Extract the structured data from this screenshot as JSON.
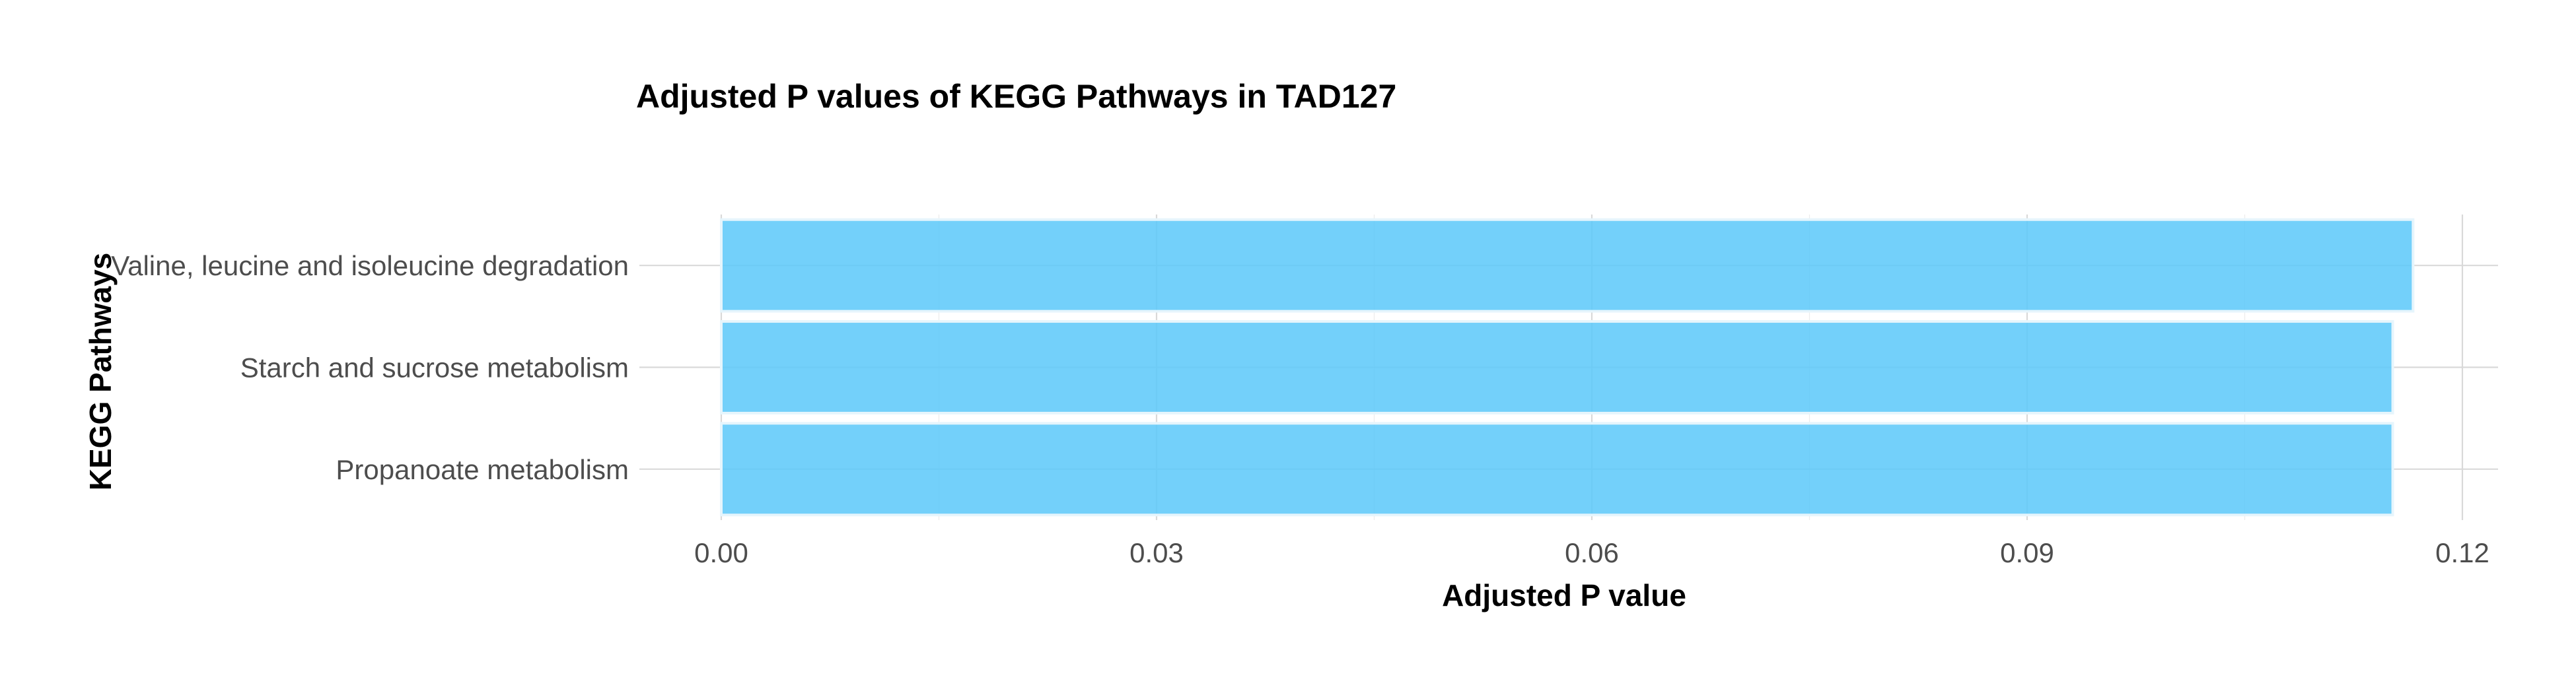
{
  "chart_data": {
    "type": "bar",
    "orientation": "horizontal",
    "title": "Adjusted P values of KEGG Pathways in TAD127",
    "xlabel": "Adjusted P value",
    "ylabel": "KEGG Pathways",
    "categories": [
      "Valine, leucine and isoleucine degradation",
      "Starch and sucrose metabolism",
      "Propanoate metabolism"
    ],
    "values": [
      0.1166,
      0.1152,
      0.1152
    ],
    "xlim": [
      0,
      0.12
    ],
    "xticks": [
      0.0,
      0.03,
      0.06,
      0.09,
      0.12
    ],
    "xtick_labels": [
      "0.00",
      "0.03",
      "0.06",
      "0.09",
      "0.12"
    ],
    "grid": true,
    "legend": "none",
    "bar_color": "#5bc8f9"
  }
}
